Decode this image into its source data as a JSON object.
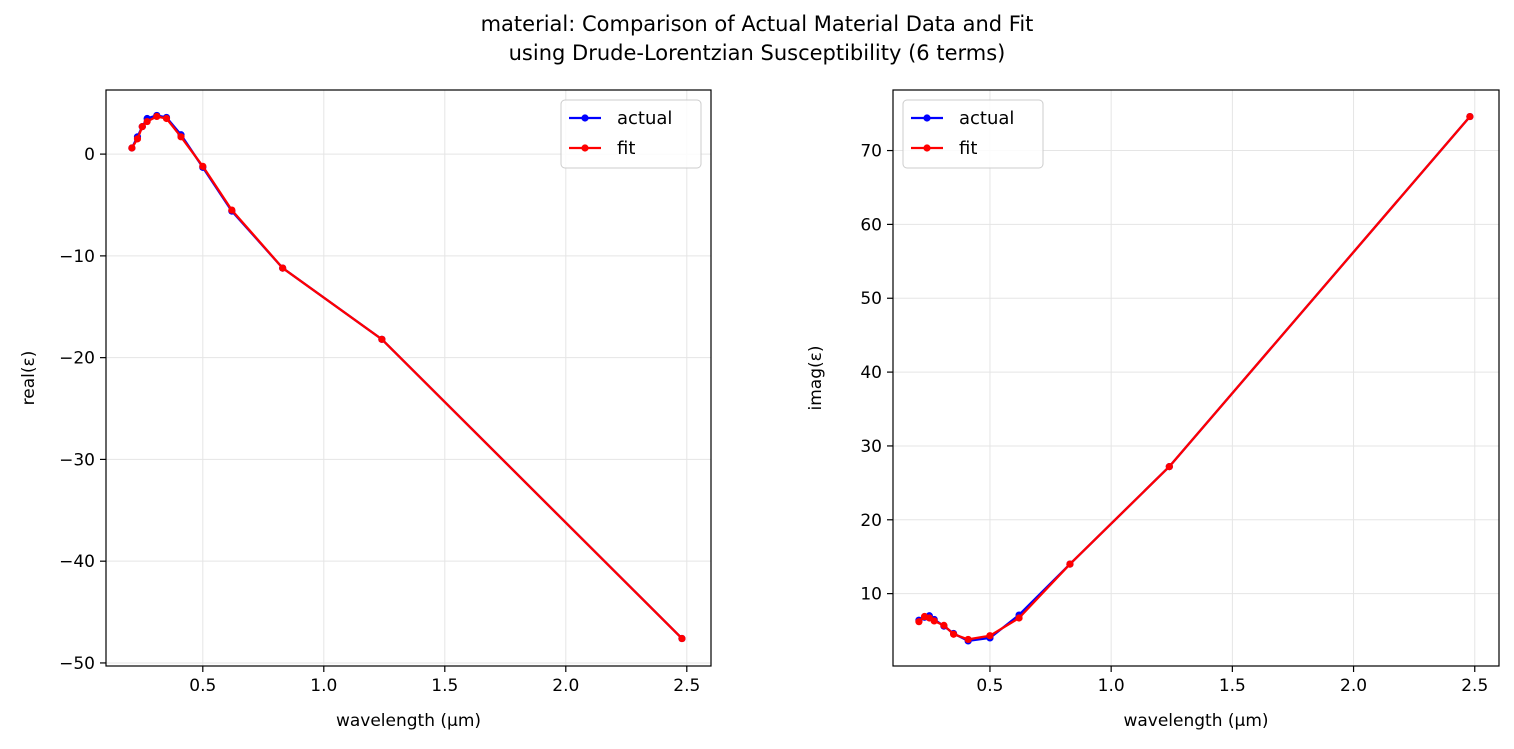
{
  "figure": {
    "title_line1": "material: Comparison of Actual Material Data and Fit",
    "title_line2": "using Drude-Lorentzian Susceptibility (6 terms)"
  },
  "colors": {
    "actual": "#0000ff",
    "fit": "#ff0000",
    "grid": "#e5e5e5",
    "frame": "#000000"
  },
  "chart_data": [
    {
      "type": "line",
      "xlabel": "wavelength (µm)",
      "ylabel": "real(ε)",
      "xlim": [
        0.1,
        2.6
      ],
      "ylim": [
        -50.3,
        6.3
      ],
      "xticks": [
        0.5,
        1.0,
        1.5,
        2.0,
        2.5
      ],
      "xtick_labels": [
        "0.5",
        "1.0",
        "1.5",
        "2.0",
        "2.5"
      ],
      "yticks": [
        0,
        -10,
        -20,
        -30,
        -40,
        -50
      ],
      "ytick_labels": [
        "0",
        "−10",
        "−20",
        "−30",
        "−40",
        "−50"
      ],
      "grid": true,
      "legend": "top-right",
      "series": [
        {
          "name": "actual",
          "x": [
            0.207,
            0.23,
            0.25,
            0.27,
            0.31,
            0.35,
            0.41,
            0.5,
            0.62,
            0.83,
            1.24,
            2.48
          ],
          "y": [
            0.6,
            1.7,
            2.7,
            3.5,
            3.8,
            3.6,
            1.9,
            -1.3,
            -5.6,
            -11.2,
            -18.2,
            -47.6
          ]
        },
        {
          "name": "fit",
          "x": [
            0.207,
            0.23,
            0.25,
            0.27,
            0.31,
            0.35,
            0.41,
            0.5,
            0.62,
            0.83,
            1.24,
            2.48
          ],
          "y": [
            0.6,
            1.5,
            2.7,
            3.2,
            3.7,
            3.5,
            1.7,
            -1.2,
            -5.5,
            -11.2,
            -18.2,
            -47.6
          ]
        }
      ]
    },
    {
      "type": "line",
      "xlabel": "wavelength (µm)",
      "ylabel": "imag(ε)",
      "xlim": [
        0.1,
        2.6
      ],
      "ylim": [
        0.2,
        78.2
      ],
      "xticks": [
        0.5,
        1.0,
        1.5,
        2.0,
        2.5
      ],
      "xtick_labels": [
        "0.5",
        "1.0",
        "1.5",
        "2.0",
        "2.5"
      ],
      "yticks": [
        10,
        20,
        30,
        40,
        50,
        60,
        70
      ],
      "ytick_labels": [
        "10",
        "20",
        "30",
        "40",
        "50",
        "60",
        "70"
      ],
      "grid": true,
      "legend": "top-left",
      "series": [
        {
          "name": "actual",
          "x": [
            0.207,
            0.23,
            0.25,
            0.27,
            0.31,
            0.35,
            0.41,
            0.5,
            0.62,
            0.83,
            1.24,
            2.48
          ],
          "y": [
            6.4,
            6.8,
            7.0,
            6.5,
            5.6,
            4.6,
            3.6,
            4.0,
            7.1,
            14.0,
            27.2,
            74.6
          ]
        },
        {
          "name": "fit",
          "x": [
            0.207,
            0.23,
            0.25,
            0.27,
            0.31,
            0.35,
            0.41,
            0.5,
            0.62,
            0.83,
            1.24,
            2.48
          ],
          "y": [
            6.2,
            6.9,
            6.7,
            6.3,
            5.7,
            4.5,
            3.8,
            4.3,
            6.7,
            14.0,
            27.2,
            74.6
          ]
        }
      ]
    }
  ]
}
